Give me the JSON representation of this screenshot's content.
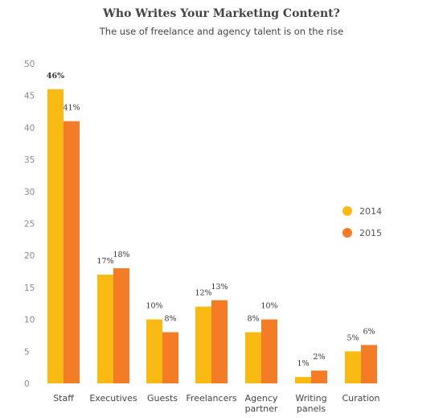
{
  "chart_data": {
    "type": "bar",
    "title": "Who Writes Your Marketing Content?",
    "subtitle": "The use of freelance and agency talent is on the rise",
    "categories": [
      [
        "Staff"
      ],
      [
        "Executives"
      ],
      [
        "Guests"
      ],
      [
        "Freelancers"
      ],
      [
        "Agency",
        "partner"
      ],
      [
        "Writing",
        "panels"
      ],
      [
        "Curation"
      ]
    ],
    "series": [
      {
        "name": "2014",
        "color": "#F9BA14",
        "values": [
          46,
          17,
          10,
          12,
          8,
          1,
          5
        ],
        "labels": [
          "46%",
          "17%",
          "10%",
          "12%",
          "8%",
          "1%",
          "5%"
        ]
      },
      {
        "name": "2015",
        "color": "#F47C27",
        "values": [
          41,
          18,
          8,
          13,
          10,
          2,
          6
        ],
        "labels": [
          "41%",
          "18%",
          "8%",
          "13%",
          "10%",
          "2%",
          "6%"
        ]
      }
    ],
    "ylim": [
      0,
      50
    ],
    "yticks": [
      0,
      5,
      10,
      15,
      20,
      25,
      30,
      35,
      40,
      45,
      50
    ],
    "xlabel": "",
    "ylabel": "",
    "grid": false,
    "legend": "right"
  }
}
